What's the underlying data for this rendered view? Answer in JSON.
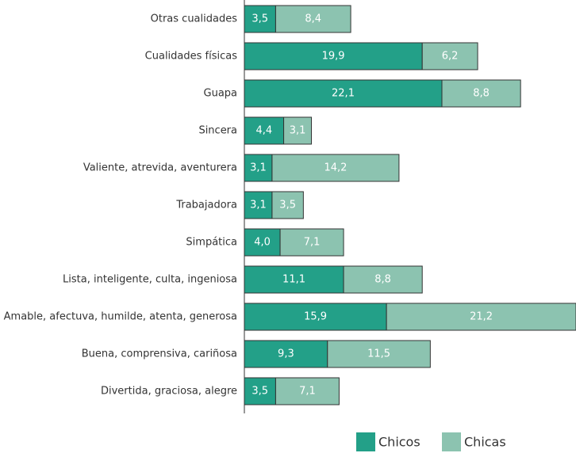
{
  "chart_data": {
    "type": "bar",
    "orientation": "horizontal",
    "stacked": true,
    "categories": [
      "Otras cualidades",
      "Cualidades físicas",
      "Guapa",
      "Sincera",
      "Valiente, atrevida, aventurera",
      "Trabajadora",
      "Simpática",
      "Lista, inteligente, culta, ingeniosa",
      "Amable, afectuva, humilde, atenta, generosa",
      "Buena, comprensiva, cariñosa",
      "Divertida, graciosa, alegre"
    ],
    "series": [
      {
        "name": "Chicos",
        "color": "#23a088",
        "values": [
          3.5,
          19.9,
          22.1,
          4.4,
          3.1,
          3.1,
          4.0,
          11.1,
          15.9,
          9.3,
          3.5
        ],
        "labels": [
          "3,5",
          "19,9",
          "22,1",
          "4,4",
          "3,1",
          "3,1",
          "4,0",
          "11,1",
          "15,9",
          "9,3",
          "3,5"
        ]
      },
      {
        "name": "Chicas",
        "color": "#8cc3b0",
        "values": [
          8.4,
          6.2,
          8.8,
          3.1,
          14.2,
          3.5,
          7.1,
          8.8,
          21.2,
          11.5,
          7.1
        ],
        "labels": [
          "8,4",
          "6,2",
          "8,8",
          "3,1",
          "14,2",
          "3,5",
          "7,1",
          "8,8",
          "21,2",
          "11,5",
          "7,1"
        ]
      }
    ],
    "xlim": [
      0,
      37.1
    ],
    "grid": false,
    "legend_position": "bottom-right"
  }
}
